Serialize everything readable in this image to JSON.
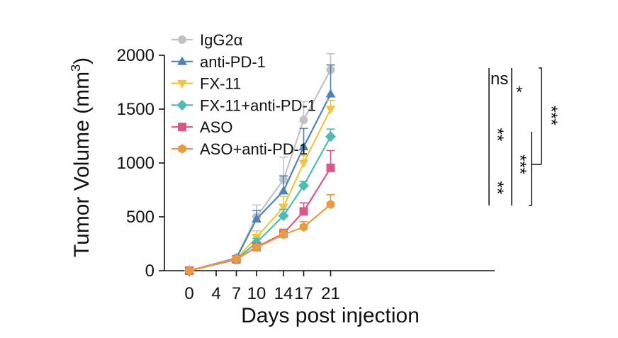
{
  "chart_data": {
    "type": "line",
    "xlabel": "Days post injection",
    "ylabel": "Tumor Volume (mm",
    "ylabel_sup": "3",
    "ylabel_close": ")",
    "x": [
      0,
      7,
      10,
      14,
      17,
      21
    ],
    "xticks": [
      0,
      4,
      7,
      10,
      14,
      17,
      21
    ],
    "xtick_labels": [
      "0",
      "4",
      "7",
      "10",
      "14",
      "17",
      "21"
    ],
    "yticks": [
      0,
      500,
      1000,
      1500,
      2000
    ],
    "ytick_labels": [
      "0",
      "500",
      "1000",
      "1500",
      "2000"
    ],
    "ylim": [
      0,
      2000
    ],
    "legend_position": "top-left",
    "series": [
      {
        "name": "IgG2α",
        "color": "#c2c2c2",
        "marker": "circle",
        "values": [
          0,
          120,
          500,
          845,
          1400,
          1865
        ],
        "errors": [
          0,
          10,
          110,
          210,
          170,
          150
        ]
      },
      {
        "name": "anti-PD-1",
        "color": "#4f83b5",
        "marker": "triangle-up",
        "values": [
          0,
          115,
          480,
          740,
          1150,
          1640
        ],
        "errors": [
          0,
          10,
          80,
          140,
          170,
          270
        ]
      },
      {
        "name": "FX-11",
        "color": "#edc646",
        "marker": "triangle-down",
        "values": [
          0,
          110,
          310,
          590,
          1000,
          1500
        ],
        "errors": [
          0,
          10,
          60,
          100,
          70,
          80
        ]
      },
      {
        "name": "FX-11+anti-PD-1",
        "color": "#4fbcb3",
        "marker": "diamond",
        "values": [
          0,
          105,
          260,
          510,
          790,
          1245
        ],
        "errors": [
          0,
          10,
          40,
          60,
          40,
          70
        ]
      },
      {
        "name": "ASO",
        "color": "#d9578a",
        "marker": "square",
        "values": [
          0,
          105,
          220,
          345,
          550,
          955
        ],
        "errors": [
          0,
          10,
          30,
          40,
          80,
          160
        ]
      },
      {
        "name": "ASO+anti-PD-1",
        "color": "#e89b40",
        "marker": "hexagon",
        "values": [
          0,
          110,
          215,
          335,
          405,
          615
        ],
        "errors": [
          0,
          10,
          30,
          40,
          50,
          90
        ]
      }
    ],
    "annotations": [
      {
        "text": "ns",
        "between": [
          "IgG2α",
          "anti-PD-1"
        ]
      },
      {
        "text": "*",
        "between": [
          "IgG2α",
          "FX-11"
        ]
      },
      {
        "text": "**",
        "between": [
          "anti-PD-1",
          "FX-11+anti-PD-1"
        ]
      },
      {
        "text": "**",
        "between": [
          "FX-11+anti-PD-1",
          "ASO+anti-PD-1"
        ]
      },
      {
        "text": "***",
        "between": [
          "FX-11",
          "ASO+anti-PD-1"
        ]
      },
      {
        "text": "***",
        "between": [
          "IgG2α",
          "FX-11 / ASO group"
        ]
      }
    ]
  }
}
